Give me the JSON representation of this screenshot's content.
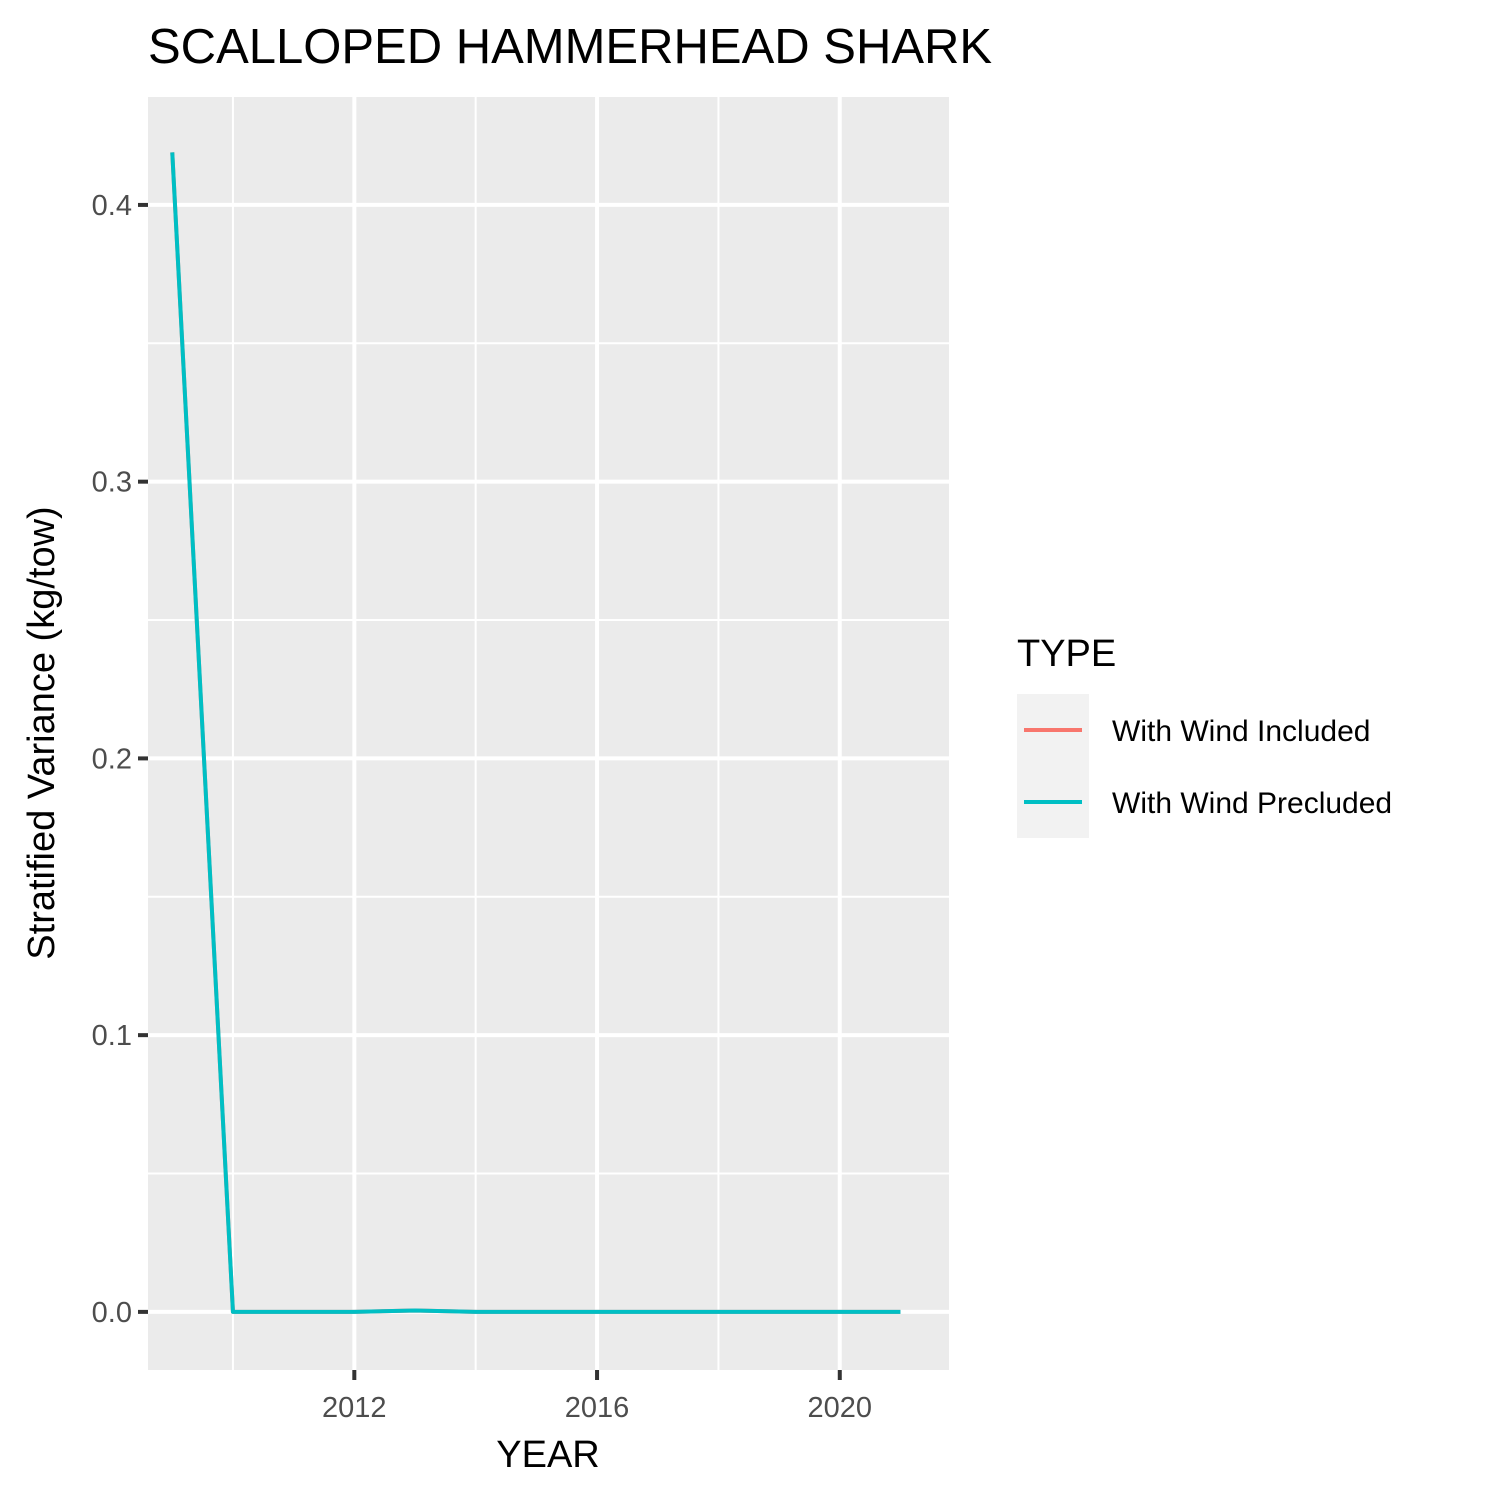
{
  "chart_data": {
    "type": "line",
    "title": "SCALLOPED HAMMERHEAD SHARK",
    "xlabel": "YEAR",
    "ylabel": "Stratified Variance (kg/tow)",
    "xlim": [
      2008.6,
      2021.8
    ],
    "ylim": [
      -0.021,
      0.439
    ],
    "x_ticks": [
      2012,
      2016,
      2020
    ],
    "x_tick_labels": [
      "2012",
      "2016",
      "2020"
    ],
    "x_minor_ticks": [
      2010,
      2014,
      2018
    ],
    "y_ticks": [
      0.0,
      0.1,
      0.2,
      0.3,
      0.4
    ],
    "y_tick_labels": [
      "0.0",
      "0.1",
      "0.2",
      "0.3",
      "0.4"
    ],
    "y_minor_ticks": [
      0.05,
      0.15,
      0.25,
      0.35
    ],
    "grid": true,
    "legend": {
      "title": "TYPE",
      "position": "right"
    },
    "x": [
      2009,
      2010,
      2011,
      2012,
      2013,
      2014,
      2015,
      2016,
      2017,
      2018,
      2019,
      2020,
      2021
    ],
    "series": [
      {
        "name": "With Wind Included",
        "color": "#F8766D",
        "values": [
          0.419,
          0.0,
          0.0,
          0.0,
          0.0005,
          0.0,
          0.0,
          0.0,
          0.0,
          0.0,
          0.0,
          0.0,
          0.0
        ]
      },
      {
        "name": "With Wind Precluded",
        "color": "#00BFC4",
        "values": [
          0.419,
          0.0,
          0.0,
          0.0,
          0.0005,
          0.0,
          0.0,
          0.0,
          0.0,
          0.0,
          0.0,
          0.0,
          0.0
        ]
      }
    ],
    "panel_color": "#EBEBEB",
    "grid_color": "#FFFFFF",
    "legend_key_color": "#F2F2F2"
  }
}
